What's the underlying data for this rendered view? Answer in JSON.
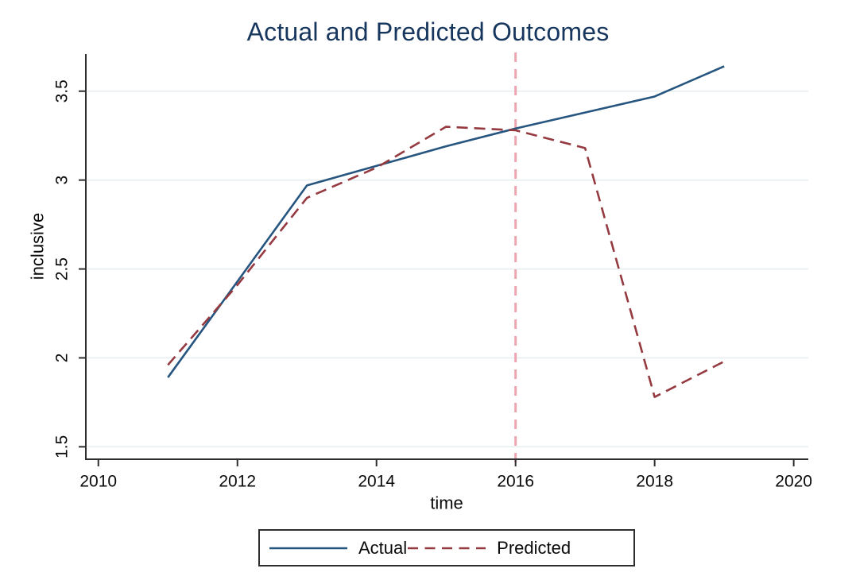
{
  "chart_data": {
    "type": "line",
    "title": "Actual and Predicted Outcomes",
    "xlabel": "time",
    "ylabel": "inclusive",
    "x": [
      2011,
      2012,
      2013,
      2014,
      2015,
      2016,
      2017,
      2018,
      2019
    ],
    "series": [
      {
        "name": "Actual",
        "style": "solid",
        "color": "#26557f",
        "values": [
          1.89,
          2.43,
          2.97,
          3.08,
          3.19,
          3.29,
          3.38,
          3.47,
          3.64
        ]
      },
      {
        "name": "Predicted",
        "style": "dashed",
        "color": "#943a40",
        "values": [
          1.96,
          2.41,
          2.9,
          3.07,
          3.3,
          3.28,
          3.18,
          1.78,
          1.98
        ]
      }
    ],
    "vline": {
      "x": 2016,
      "color": "#eca6b2",
      "style": "dashed"
    },
    "xlim": [
      2009.82,
      2020.21
    ],
    "ylim": [
      1.43,
      3.7
    ],
    "xticks": [
      "2010",
      "2012",
      "2014",
      "2016",
      "2018",
      "2020"
    ],
    "yticks": [
      "1.5",
      "2",
      "2.5",
      "3",
      "3.5"
    ],
    "grid": "horizontal",
    "legend_position": "bottom-center",
    "colors": {
      "title": "#17365d",
      "axis": "#2e2e2e",
      "grid": "#e6eef0",
      "tick_text": "#0a0a0a",
      "legend_border": "#2e2e2e"
    }
  }
}
